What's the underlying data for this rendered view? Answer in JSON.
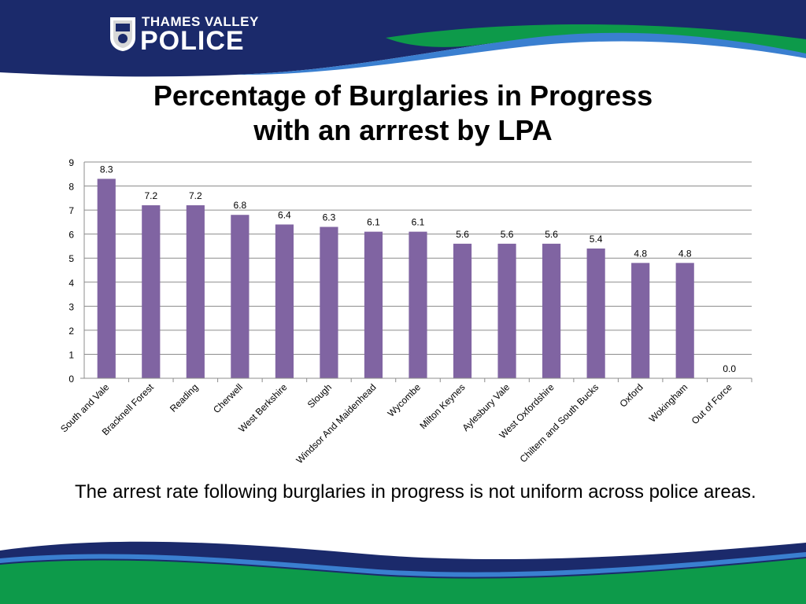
{
  "header": {
    "org_top": "THAMES VALLEY",
    "org_main": "POLICE"
  },
  "title": {
    "line1": "Percentage of Burglaries in Progress",
    "line2": "with an arrrest by LPA"
  },
  "chart_data": {
    "type": "bar",
    "categories": [
      "South and Vale",
      "Bracknell Forest",
      "Reading",
      "Cherwell",
      "West Berkshire",
      "Slough",
      "Windsor And Maidenhead",
      "Wycombe",
      "Milton Keynes",
      "Aylesbury Vale",
      "West Oxfordshire",
      "Chiltern and South Bucks",
      "Oxford",
      "Wokingham",
      "Out of Force"
    ],
    "values": [
      8.3,
      7.2,
      7.2,
      6.8,
      6.4,
      6.3,
      6.1,
      6.1,
      5.6,
      5.6,
      5.6,
      5.4,
      4.8,
      4.8,
      0.0
    ],
    "data_labels": [
      "8.3",
      "7.2",
      "7.2",
      "6.8",
      "6.4",
      "6.3",
      "6.1",
      "6.1",
      "5.6",
      "5.6",
      "5.6",
      "5.4",
      "4.8",
      "4.8",
      "0.0"
    ],
    "yticks": [
      "0",
      "1",
      "2",
      "3",
      "4",
      "5",
      "6",
      "7",
      "8",
      "9"
    ],
    "ylim": [
      0,
      9
    ],
    "grid": true,
    "legend": "none",
    "bar_color": "#8064a2"
  },
  "caption": "The arrest rate following burglaries in progress is not uniform across police areas.",
  "colors": {
    "navy": "#1b2a6b",
    "green": "#0d9a4a",
    "light_blue": "#3a7fd0"
  }
}
